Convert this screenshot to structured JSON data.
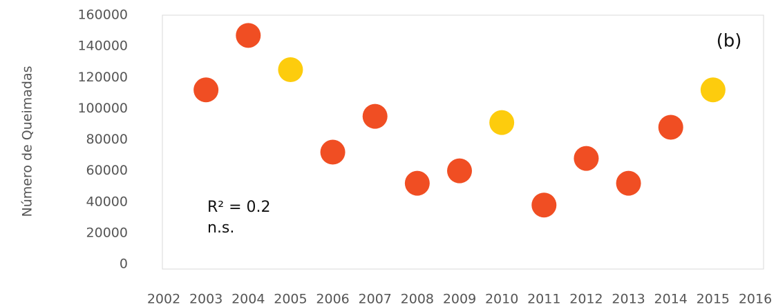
{
  "chart_data": {
    "type": "scatter",
    "y_label": "Número de Queimadas",
    "annotations": [
      "(b)",
      "R² = 0.2",
      "n.s."
    ],
    "x": [
      2003,
      2004,
      2005,
      2006,
      2007,
      2008,
      2009,
      2010,
      2011,
      2012,
      2013,
      2014,
      2015
    ],
    "values": [
      112000,
      147000,
      125000,
      72000,
      95000,
      52000,
      60000,
      91000,
      38000,
      68000,
      52000,
      88000,
      112000
    ],
    "colors": [
      "#f04e23",
      "#f04e23",
      "#fdcc0d",
      "#f04e23",
      "#f04e23",
      "#f04e23",
      "#f04e23",
      "#fdcc0d",
      "#f04e23",
      "#f04e23",
      "#f04e23",
      "#f04e23",
      "#fdcc0d"
    ],
    "xlim": [
      2002,
      2016
    ],
    "xticks": [
      2002,
      2003,
      2004,
      2005,
      2006,
      2007,
      2008,
      2009,
      2010,
      2011,
      2012,
      2013,
      2014,
      2015,
      2016
    ],
    "ylim": [
      0,
      160000
    ],
    "yticks": [
      0,
      20000,
      40000,
      60000,
      80000,
      100000,
      120000,
      140000,
      160000
    ],
    "grid": false
  }
}
